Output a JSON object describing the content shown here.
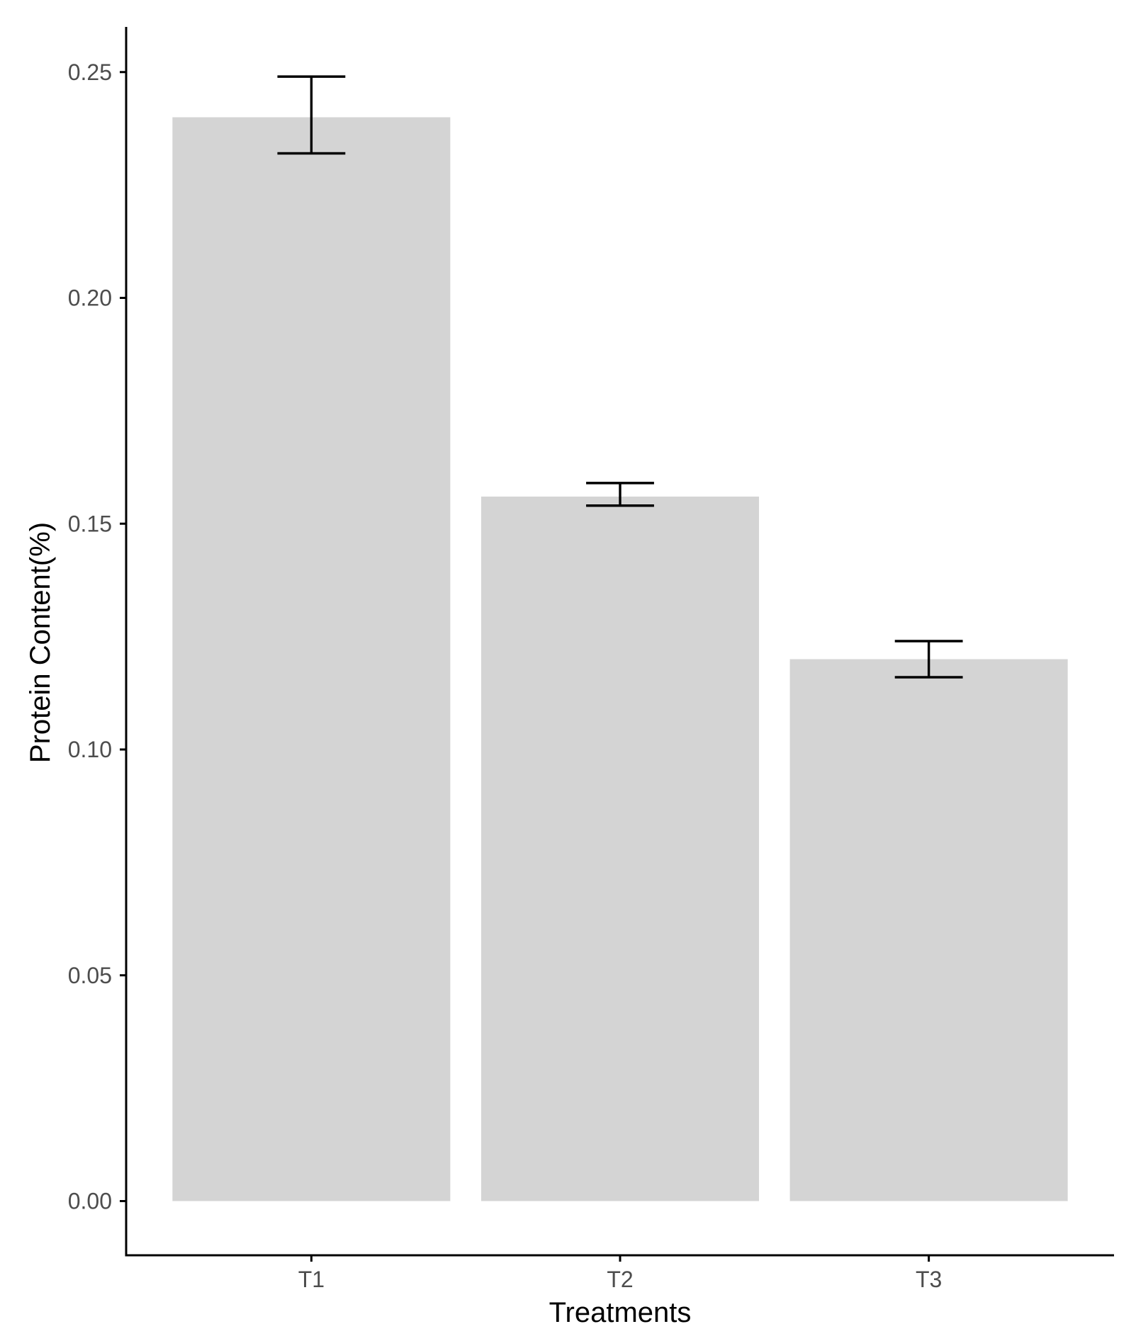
{
  "chart_data": {
    "type": "bar",
    "categories": [
      "T1",
      "T2",
      "T3"
    ],
    "values": [
      0.24,
      0.156,
      0.12
    ],
    "error_low": [
      0.232,
      0.154,
      0.116
    ],
    "error_high": [
      0.249,
      0.159,
      0.124
    ],
    "xlabel": "Treatments",
    "ylabel": "Protein Content(%)",
    "ylim": [
      -0.012,
      0.26
    ],
    "yticks": [
      0.0,
      0.05,
      0.1,
      0.15,
      0.2,
      0.25
    ],
    "ytick_labels": [
      "0.00",
      "0.05",
      "0.10",
      "0.15",
      "0.20",
      "0.25"
    ],
    "grid": false,
    "legend": "none",
    "colors": {
      "bar_fill": "#d4d4d4",
      "axis": "#000000",
      "tick_text": "#4d4d4d",
      "background": "#ffffff"
    }
  }
}
